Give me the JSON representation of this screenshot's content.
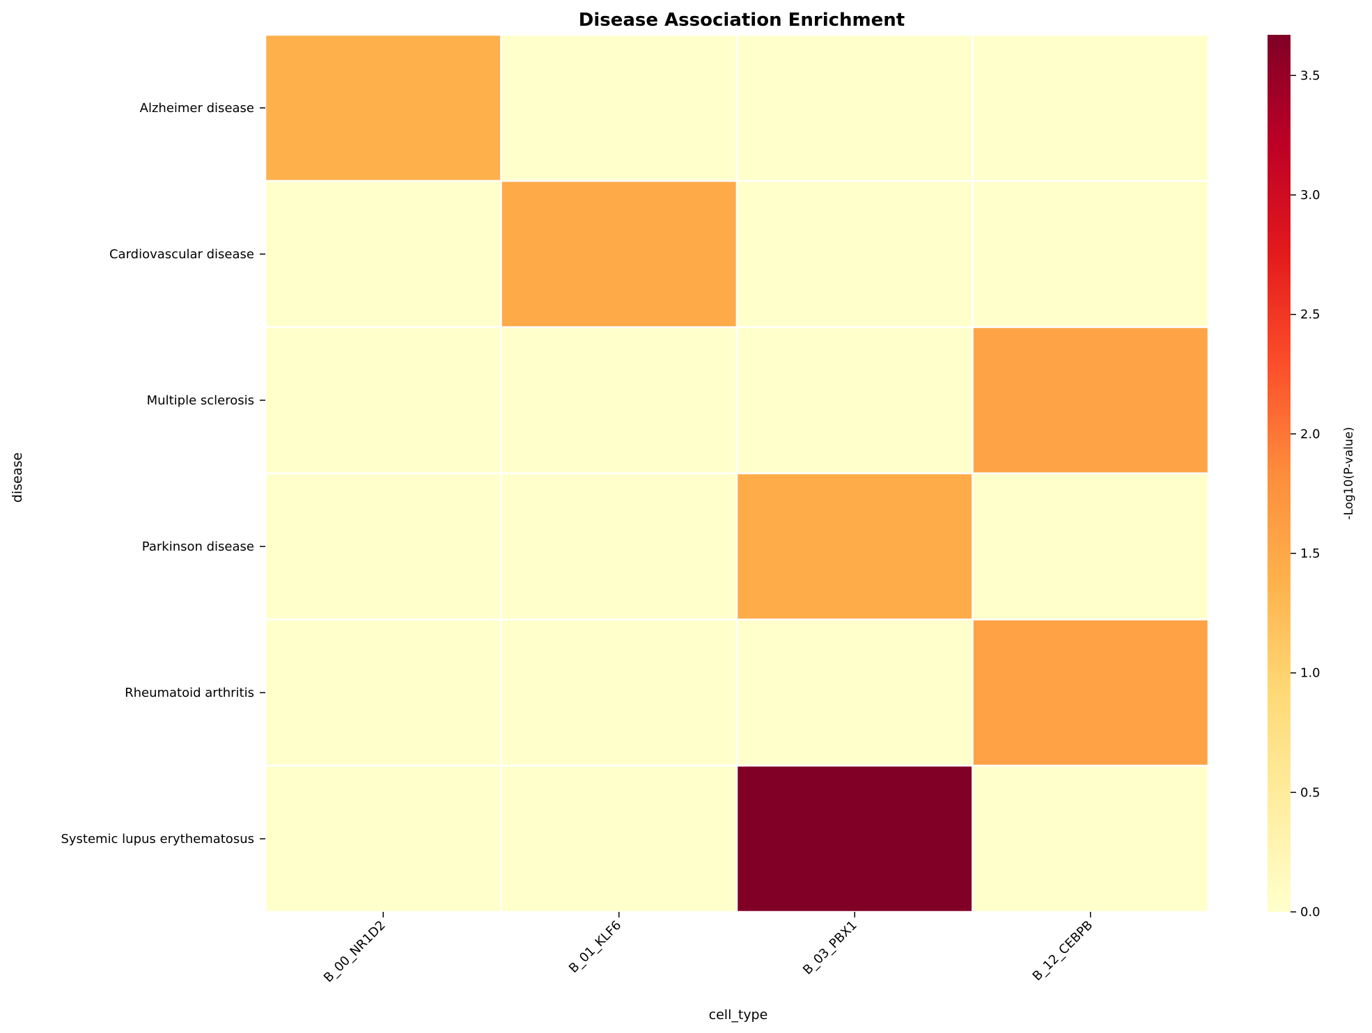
{
  "chart_data": {
    "type": "heatmap",
    "title": "Disease Association Enrichment",
    "xlabel": "cell_type",
    "ylabel": "disease",
    "x_categories": [
      "B_00_NR1D2",
      "B_01_KLF6",
      "B_03_PBX1",
      "B_12_CEBPB"
    ],
    "y_categories": [
      "Alzheimer disease",
      "Cardiovascular disease",
      "Multiple sclerosis",
      "Parkinson disease",
      "Rheumatoid arthritis",
      "Systemic lupus erythematosus"
    ],
    "values": [
      [
        1.4,
        0.0,
        0.0,
        0.0
      ],
      [
        0.0,
        1.48,
        0.0,
        0.0
      ],
      [
        0.0,
        0.0,
        0.0,
        1.55
      ],
      [
        0.0,
        0.0,
        1.45,
        0.0
      ],
      [
        0.0,
        0.0,
        0.0,
        1.58
      ],
      [
        0.0,
        0.0,
        3.67,
        0.0
      ]
    ],
    "colorbar": {
      "label": "-Log10(P-value)",
      "range": [
        0,
        3.67
      ],
      "ticks": [
        0.0,
        0.5,
        1.0,
        1.5,
        2.0,
        2.5,
        3.0,
        3.5
      ],
      "tick_labels": [
        "0.0",
        "0.5",
        "1.0",
        "1.5",
        "2.0",
        "2.5",
        "3.0",
        "3.5"
      ],
      "colormap": "YlOrRd",
      "colors": [
        "#ffffcc",
        "#ffeda0",
        "#fed976",
        "#feb24c",
        "#fd8d3c",
        "#fc4e2a",
        "#e31a1c",
        "#bd0026",
        "#800026"
      ]
    },
    "cell_border_color": "#ffffff",
    "grid": false
  }
}
